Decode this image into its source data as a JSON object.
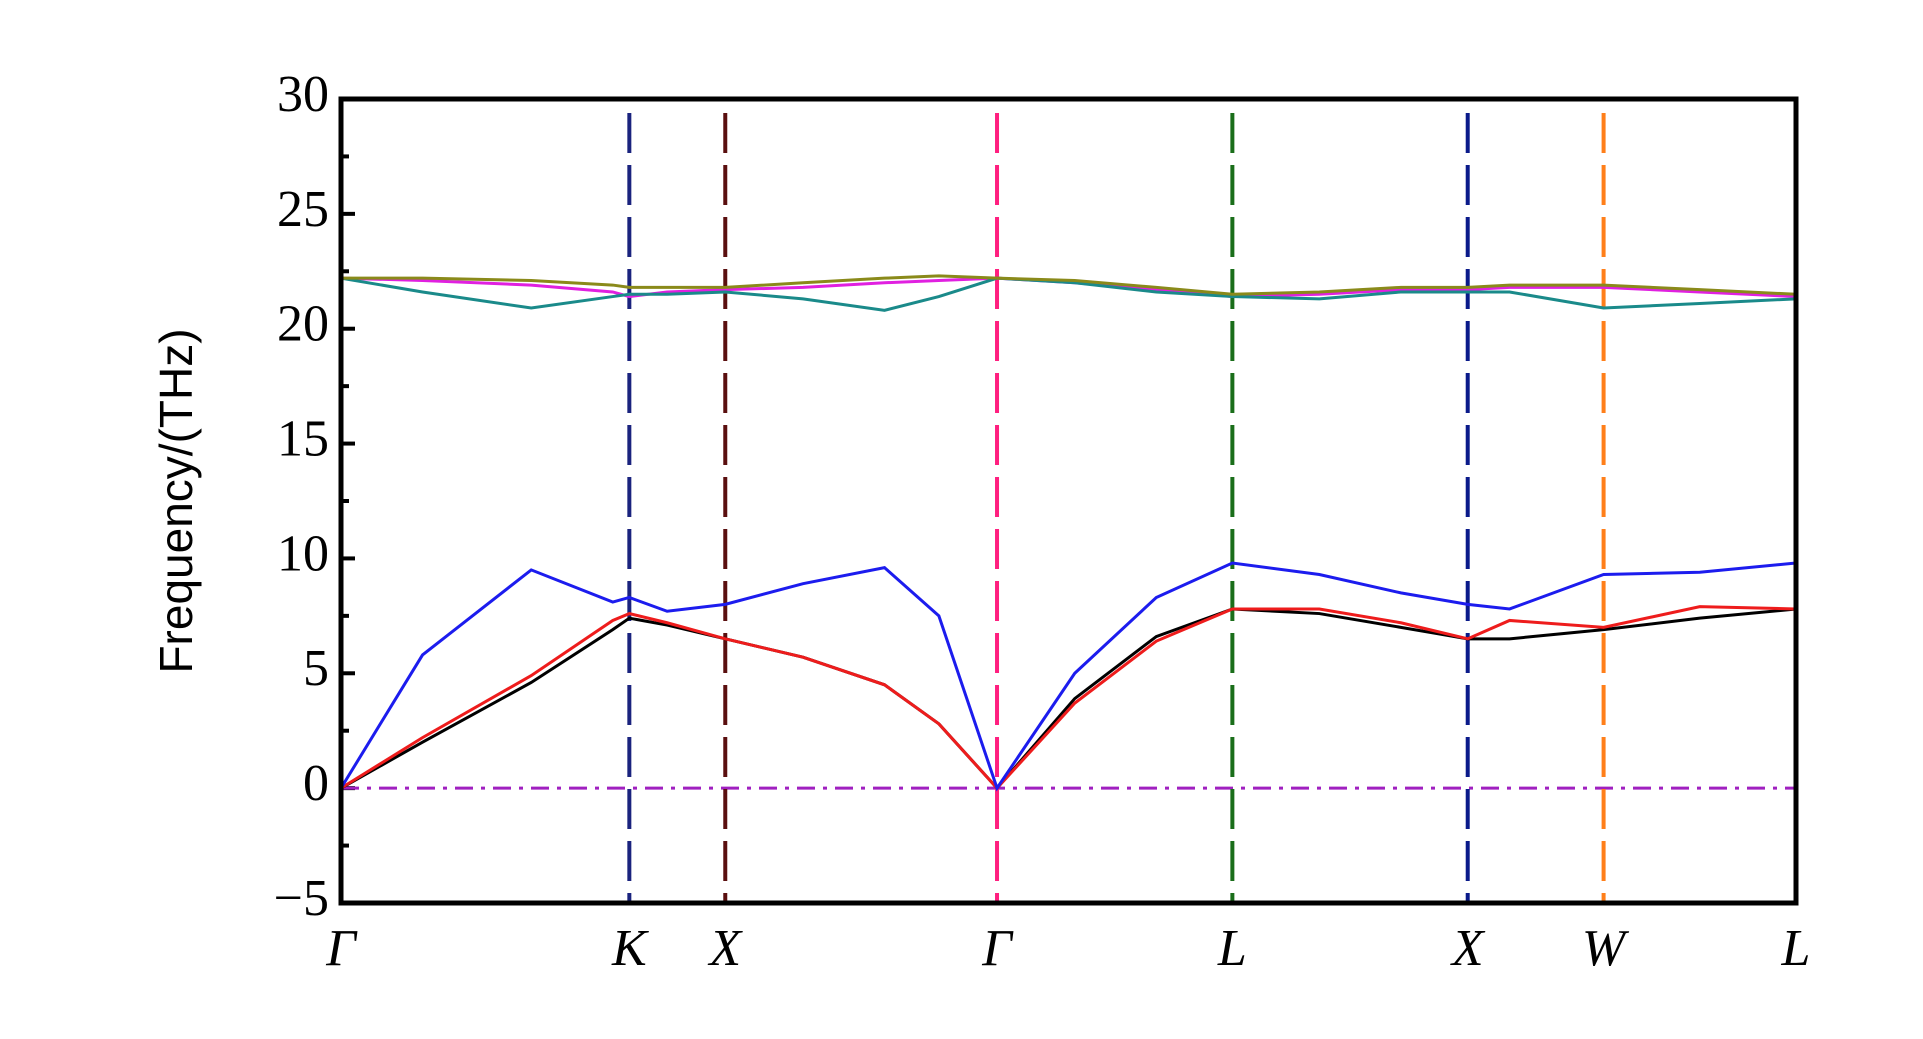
{
  "chart_data": {
    "type": "line",
    "y_label": "Frequency/(THz)",
    "xlim": [
      0,
      5.354
    ],
    "xticks": [
      {
        "value": 0,
        "label": "Γ"
      },
      {
        "value": 1.061,
        "label": "K"
      },
      {
        "value": 1.414,
        "label": "X"
      },
      {
        "value": 2.414,
        "label": "Γ"
      },
      {
        "value": 3.28,
        "label": "L"
      },
      {
        "value": 4.146,
        "label": "X"
      },
      {
        "value": 4.646,
        "label": "W"
      },
      {
        "value": 5.354,
        "label": "L"
      }
    ],
    "xtick_line_colors": [
      "#000000",
      "#1a237e",
      "#5a0f0f",
      "#ff1f7f",
      "#1a6e1a",
      "#0a1a8a",
      "#ff7f1a",
      "#000000"
    ],
    "ylim": [
      -5,
      30
    ],
    "yticks": [
      {
        "value": -5,
        "label": "−5"
      },
      0,
      5,
      10,
      15,
      20,
      25,
      30
    ],
    "yminorticks": [
      -2.5,
      2.5,
      7.5,
      12.5,
      17.5,
      22.5,
      27.5
    ],
    "hlines": [
      {
        "value": 0,
        "color": "#a020c0"
      }
    ],
    "x": [
      0,
      0.3,
      0.7,
      1.0,
      1.061,
      1.2,
      1.414,
      1.7,
      2.0,
      2.2,
      2.414,
      2.7,
      3.0,
      3.28,
      3.6,
      3.9,
      4.146,
      4.3,
      4.646,
      5.0,
      5.354
    ],
    "series": [
      {
        "color": "#000000",
        "values": [
          0,
          2.0,
          4.6,
          6.9,
          7.4,
          7.1,
          6.5,
          5.7,
          4.5,
          2.8,
          0,
          3.9,
          6.6,
          7.8,
          7.6,
          7.0,
          6.5,
          6.5,
          6.9,
          7.4,
          7.8
        ]
      },
      {
        "color": "#ee1c1c",
        "values": [
          0,
          2.2,
          4.9,
          7.3,
          7.6,
          7.2,
          6.5,
          5.7,
          4.5,
          2.8,
          0,
          3.7,
          6.4,
          7.8,
          7.8,
          7.2,
          6.5,
          7.3,
          7.0,
          7.9,
          7.8
        ]
      },
      {
        "color": "#1c1cee",
        "values": [
          0,
          5.8,
          9.5,
          8.1,
          8.3,
          7.7,
          8.0,
          8.9,
          9.6,
          7.5,
          0,
          5.0,
          8.3,
          9.8,
          9.3,
          8.5,
          8.0,
          7.8,
          9.3,
          9.4,
          9.8
        ]
      },
      {
        "color": "#e020e0",
        "values": [
          22.2,
          22.1,
          21.9,
          21.6,
          21.4,
          21.6,
          21.7,
          21.8,
          22.0,
          22.1,
          22.2,
          22.0,
          21.7,
          21.4,
          21.5,
          21.7,
          21.7,
          21.8,
          21.8,
          21.6,
          21.4
        ]
      },
      {
        "color": "#1a8a8a",
        "values": [
          22.2,
          21.6,
          20.9,
          21.4,
          21.5,
          21.5,
          21.6,
          21.3,
          20.8,
          21.4,
          22.2,
          22.0,
          21.6,
          21.4,
          21.3,
          21.6,
          21.6,
          21.6,
          20.9,
          21.1,
          21.3
        ]
      },
      {
        "color": "#8a8a1a",
        "values": [
          22.2,
          22.2,
          22.1,
          21.9,
          21.8,
          21.8,
          21.8,
          22.0,
          22.2,
          22.3,
          22.2,
          22.1,
          21.8,
          21.5,
          21.6,
          21.8,
          21.8,
          21.9,
          21.9,
          21.7,
          21.5
        ]
      }
    ]
  }
}
